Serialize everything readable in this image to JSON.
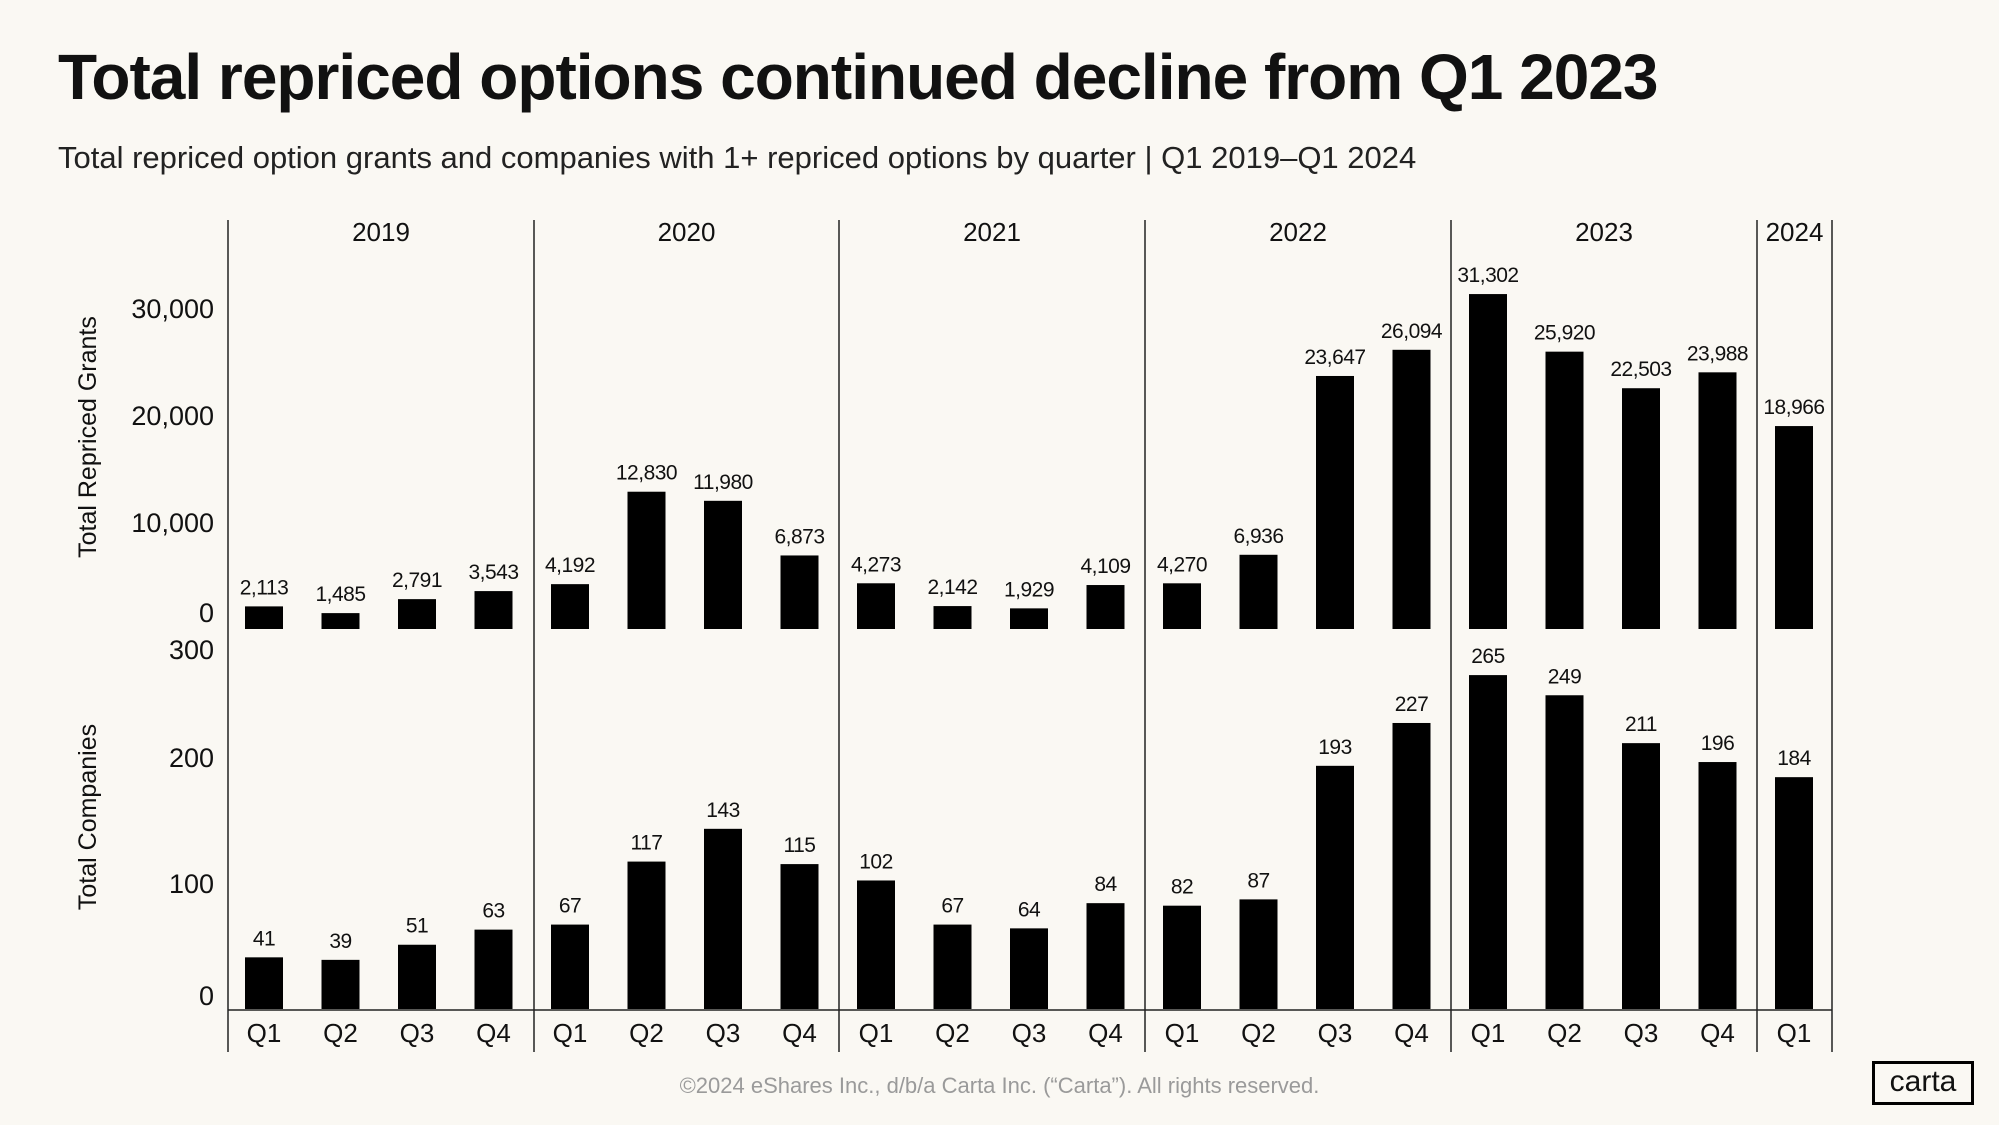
{
  "title": "Total repriced options continued decline from Q1 2023",
  "subtitle": "Total repriced option grants and companies with 1+ repriced options by quarter | Q1 2019–Q1 2024",
  "footer": {
    "copyright": "©2024 eShares Inc., d/b/a Carta Inc. (“Carta”). All rights reserved.",
    "logo": "carta"
  },
  "chart_data": [
    {
      "type": "bar",
      "ylabel": "Total Repriced Grants",
      "ylim": [
        0,
        35000
      ],
      "yticks": [
        "0",
        "10,000",
        "20,000",
        "30,000"
      ],
      "ytick_values": [
        0,
        10000,
        20000,
        30000
      ],
      "years": [
        "2019",
        "2020",
        "2021",
        "2022",
        "2023",
        "2024"
      ],
      "categories": [
        "Q1",
        "Q2",
        "Q3",
        "Q4",
        "Q1",
        "Q2",
        "Q3",
        "Q4",
        "Q1",
        "Q2",
        "Q3",
        "Q4",
        "Q1",
        "Q2",
        "Q3",
        "Q4",
        "Q1",
        "Q2",
        "Q3",
        "Q4",
        "Q1"
      ],
      "values": [
        2113,
        1485,
        2791,
        3543,
        4192,
        12830,
        11980,
        6873,
        4273,
        2142,
        1929,
        4109,
        4270,
        6936,
        23647,
        26094,
        31302,
        25920,
        22503,
        23988,
        18966
      ],
      "labels": [
        "2,113",
        "1,485",
        "2,791",
        "3,543",
        "4,192",
        "12,830",
        "11,980",
        "6,873",
        "4,273",
        "2,142",
        "1,929",
        "4,109",
        "4,270",
        "6,936",
        "23,647",
        "26,094",
        "31,302",
        "25,920",
        "22,503",
        "23,988",
        "18,966"
      ],
      "color": "#000000",
      "grid": false
    },
    {
      "type": "bar",
      "ylabel": "Total Companies",
      "ylim": [
        0,
        300
      ],
      "yticks": [
        "0",
        "100",
        "200",
        "300"
      ],
      "ytick_values": [
        0,
        100,
        200,
        300
      ],
      "categories": [
        "Q1",
        "Q2",
        "Q3",
        "Q4",
        "Q1",
        "Q2",
        "Q3",
        "Q4",
        "Q1",
        "Q2",
        "Q3",
        "Q4",
        "Q1",
        "Q2",
        "Q3",
        "Q4",
        "Q1",
        "Q2",
        "Q3",
        "Q4",
        "Q1"
      ],
      "values": [
        41,
        39,
        51,
        63,
        67,
        117,
        143,
        115,
        102,
        67,
        64,
        84,
        82,
        87,
        193,
        227,
        265,
        249,
        211,
        196,
        184
      ],
      "labels": [
        "41",
        "39",
        "51",
        "63",
        "67",
        "117",
        "143",
        "115",
        "102",
        "67",
        "64",
        "84",
        "82",
        "87",
        "193",
        "227",
        "265",
        "249",
        "211",
        "196",
        "184"
      ],
      "color": "#000000",
      "grid": false
    }
  ]
}
